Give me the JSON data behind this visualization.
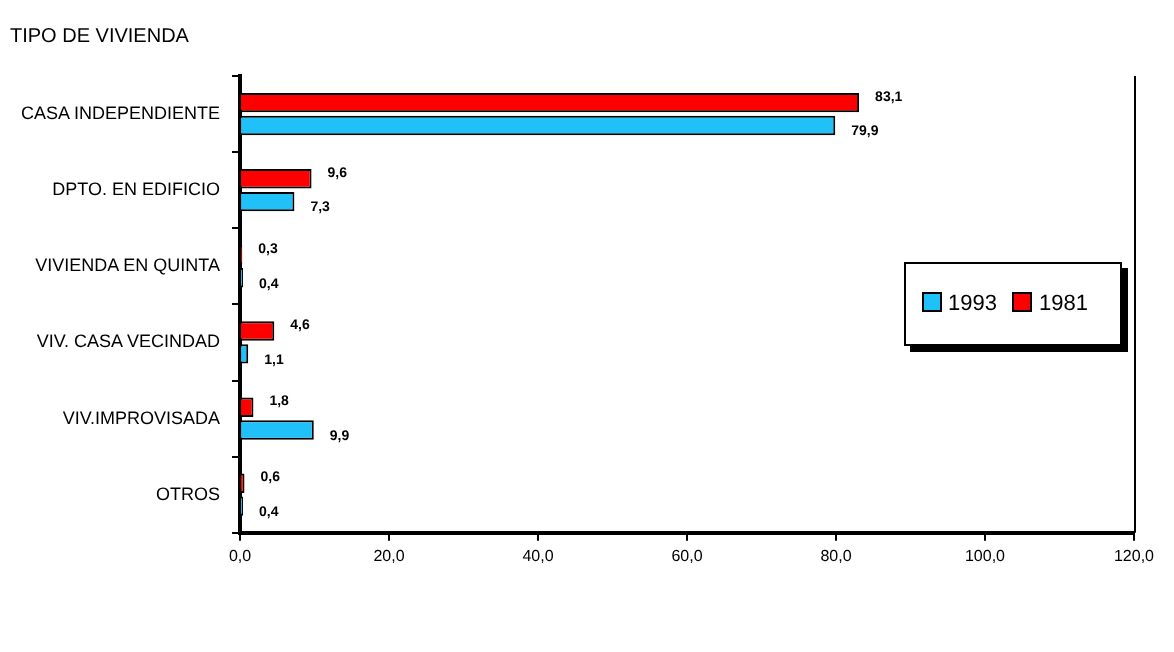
{
  "chart_data": {
    "type": "bar",
    "orientation": "horizontal",
    "ylabel": "TIPO DE VIVIENDA",
    "categories": [
      "CASA INDEPENDIENTE",
      "DPTO. EN EDIFICIO",
      "VIVIENDA EN QUINTA",
      "VIV. CASA VECINDAD",
      "VIV.IMPROVISADA",
      "OTROS"
    ],
    "series": [
      {
        "name": "1993",
        "color": "#20c0f8",
        "values": [
          79.9,
          7.3,
          0.4,
          1.1,
          9.9,
          0.4
        ],
        "value_labels": [
          "79,9",
          "7,3",
          "0,4",
          "1,1",
          "9,9",
          "0,4"
        ]
      },
      {
        "name": "1981",
        "color": "#ff0000",
        "values": [
          83.1,
          9.6,
          0.3,
          4.6,
          1.8,
          0.6
        ],
        "value_labels": [
          "83,1",
          "9,6",
          "0,3",
          "4,6",
          "1,8",
          "0,6"
        ]
      }
    ],
    "xlim": [
      0,
      120
    ],
    "xticks": [
      {
        "value": 0,
        "label": "0,0"
      },
      {
        "value": 20,
        "label": "20,0"
      },
      {
        "value": 40,
        "label": "40,0"
      },
      {
        "value": 60,
        "label": "60,0"
      },
      {
        "value": 80,
        "label": "80,0"
      },
      {
        "value": 100,
        "label": "100,0"
      },
      {
        "value": 120,
        "label": "120,0"
      }
    ],
    "grid": false,
    "legend": "right"
  }
}
